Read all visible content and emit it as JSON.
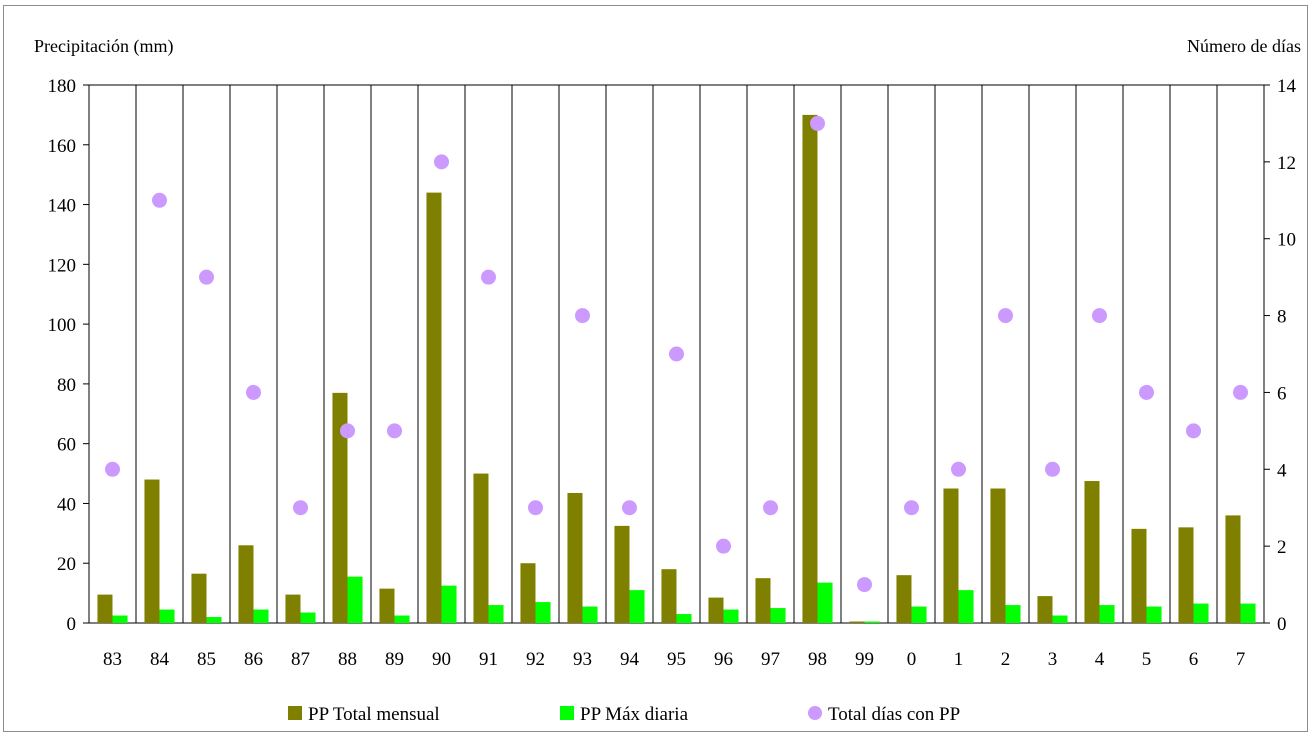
{
  "chart_data": {
    "type": "bar",
    "title": "",
    "left_axis_title": "Precipitación (mm)",
    "right_axis_title": "Número de días",
    "categories": [
      "83",
      "84",
      "85",
      "86",
      "87",
      "88",
      "89",
      "90",
      "91",
      "92",
      "93",
      "94",
      "95",
      "96",
      "97",
      "98",
      "99",
      "0",
      "1",
      "2",
      "3",
      "4",
      "5",
      "6",
      "7"
    ],
    "left_ylim": [
      0,
      180
    ],
    "left_yticks": [
      0,
      20,
      40,
      60,
      80,
      100,
      120,
      140,
      160,
      180
    ],
    "right_ylim": [
      0,
      14
    ],
    "right_yticks": [
      0,
      2,
      4,
      6,
      8,
      10,
      12,
      14
    ],
    "grid": "vertical category gridlines",
    "legend_position": "bottom",
    "series": [
      {
        "name": "PP Total mensual",
        "kind": "bar",
        "axis": "left",
        "color": "#808000",
        "values": [
          9.5,
          48,
          16.5,
          26,
          9.5,
          77,
          11.5,
          144,
          50,
          20,
          43.5,
          32.5,
          18,
          8.5,
          15,
          170,
          0.5,
          16,
          45,
          45,
          9,
          47.5,
          31.5,
          32,
          36
        ]
      },
      {
        "name": "PP Máx diaria",
        "kind": "bar",
        "axis": "left",
        "color": "#00ff00",
        "values": [
          2.5,
          4.5,
          2,
          4.5,
          3.5,
          15.5,
          2.5,
          12.5,
          6,
          7,
          5.5,
          11,
          3,
          4.5,
          5,
          13.5,
          0.5,
          5.5,
          11,
          6,
          2.5,
          6,
          5.5,
          6.5,
          6.5
        ]
      },
      {
        "name": "Total días con PP",
        "kind": "scatter",
        "axis": "right",
        "color": "#cc99ff",
        "values": [
          4,
          11,
          9,
          6,
          3,
          5,
          5,
          12,
          9,
          3,
          8,
          3,
          7,
          2,
          3,
          13,
          1,
          3,
          4,
          8,
          4,
          8,
          6,
          5,
          6
        ]
      }
    ]
  }
}
